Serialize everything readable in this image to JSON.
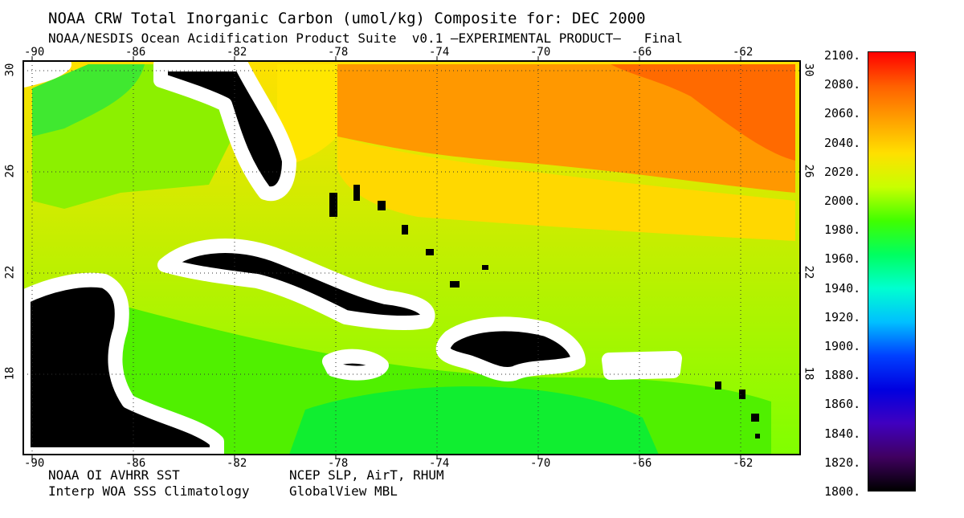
{
  "header": {
    "title": "NOAA CRW Total Inorganic Carbon (umol/kg) Composite for: DEC 2000",
    "subtitle": "NOAA/NESDIS Ocean Acidification Product Suite  v0.1 –EXPERIMENTAL PRODUCT–   Final"
  },
  "map": {
    "lon_ticks": [
      "-90",
      "-86",
      "-82",
      "-78",
      "-74",
      "-70",
      "-66",
      "-62"
    ],
    "lat_ticks_left": [
      "30",
      "26",
      "22",
      "18"
    ],
    "lat_ticks_right": [
      "30",
      "26",
      "22",
      "18"
    ],
    "lon_range": [
      -90.5,
      -59.5
    ],
    "lat_range": [
      14.5,
      30.5
    ],
    "land_color": "#000000",
    "no_data_color": "#ffffff"
  },
  "colorbar": {
    "labels": [
      "2100.",
      "2080.",
      "2060.",
      "2040.",
      "2020.",
      "2000.",
      "1980.",
      "1960.",
      "1940.",
      "1920.",
      "1900.",
      "1880.",
      "1860.",
      "1840.",
      "1820.",
      "1800."
    ],
    "min": 1800,
    "max": 2100,
    "colors_top_to_bottom": [
      "#ff0000",
      "#ff6000",
      "#ffa000",
      "#ffe000",
      "#c8ff00",
      "#40ff00",
      "#00ff60",
      "#00ffd0",
      "#00c0ff",
      "#0040ff",
      "#0000e0",
      "#4000c0",
      "#400060",
      "#000000"
    ]
  },
  "footer": {
    "credit_left_1": "NOAA OI AVHRR SST",
    "credit_left_2": "Interp WOA SSS Climatology",
    "credit_right_1": "NCEP SLP, AirT, RHUM",
    "credit_right_2": "GlobalView MBL"
  }
}
